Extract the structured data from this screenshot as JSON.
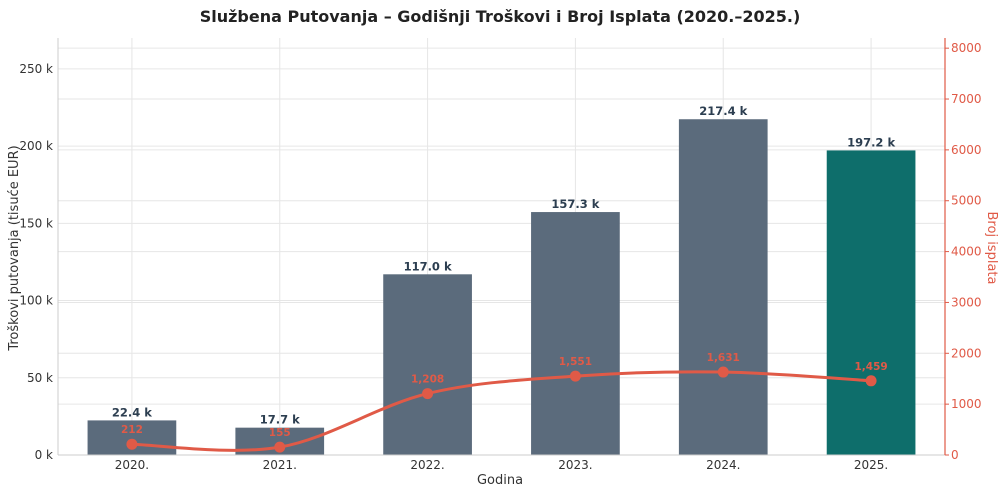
{
  "chart_data": {
    "type": "bar",
    "title": "Službena Putovanja – Godišnji Troškovi i Broj Isplata (2020.–2025.)",
    "xlabel": "Godina",
    "ylabel": "Troškovi putovanja (tisuće EUR)",
    "y2label": "Broj isplata",
    "categories": [
      "2020.",
      "2021.",
      "2022.",
      "2023.",
      "2024.",
      "2025."
    ],
    "ylim": [
      0,
      270
    ],
    "y_ticks": [
      0,
      50,
      100,
      150,
      200,
      250
    ],
    "y_tick_labels": [
      "0 k",
      "50 k",
      "100 k",
      "150 k",
      "200 k",
      "250 k"
    ],
    "y2lim": [
      0,
      8200
    ],
    "y2_ticks": [
      0,
      1000,
      2000,
      3000,
      4000,
      5000,
      6000,
      7000,
      8000
    ],
    "grid": true,
    "series": [
      {
        "name": "Troškovi putovanja",
        "type": "bar",
        "axis": "left",
        "values": [
          22.4,
          17.7,
          117.0,
          157.3,
          217.4,
          197.2
        ],
        "labels": [
          "22.4 k",
          "17.7 k",
          "117.0 k",
          "157.3 k",
          "217.4 k",
          "197.2 k"
        ],
        "color": "#5b6b7c",
        "highlight_index": 5,
        "highlight_color": "#0e6e6b"
      },
      {
        "name": "Broj isplata",
        "type": "line",
        "axis": "right",
        "values": [
          212,
          155,
          1208,
          1551,
          1631,
          1459
        ],
        "labels": [
          "212",
          "155",
          "1,208",
          "1,551",
          "1,631",
          "1,459"
        ],
        "color": "#e05a47"
      }
    ]
  }
}
